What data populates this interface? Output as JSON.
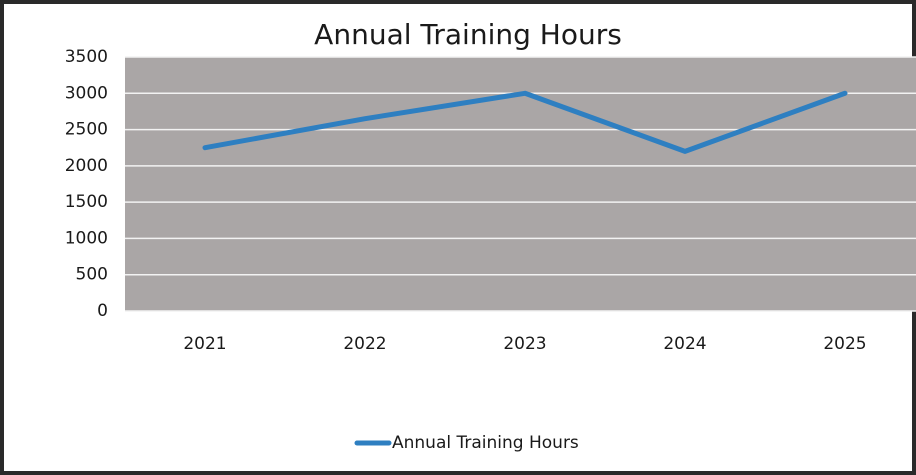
{
  "chart_data": {
    "type": "line",
    "title": "Annual Training Hours",
    "categories": [
      "2021",
      "2022",
      "2023",
      "2024",
      "2025"
    ],
    "series": [
      {
        "name": "Annual Training Hours",
        "color": "#2e7fc1",
        "values": [
          2250,
          2650,
          3000,
          2200,
          3000
        ]
      }
    ],
    "ylim": [
      0,
      3500
    ],
    "yticks": [
      0,
      500,
      1000,
      1500,
      2000,
      2500,
      3000,
      3500
    ],
    "grid": true,
    "legend": "bottom"
  }
}
